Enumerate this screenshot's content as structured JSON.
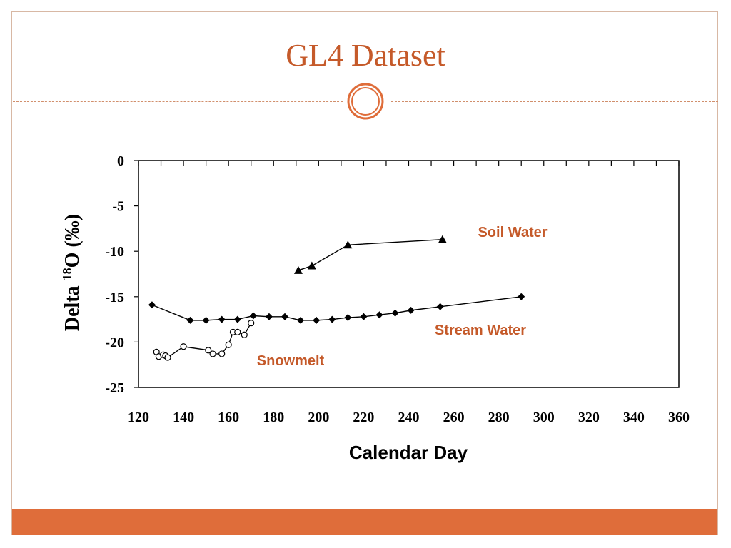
{
  "slide": {
    "title": "GL4 Dataset"
  },
  "colors": {
    "accent": "#c55a2a",
    "bar": "#df6d3a",
    "series_label": "#c55a2a"
  },
  "chart_data": {
    "type": "scatter",
    "title": "",
    "xlabel": "Calendar Day",
    "ylabel_prefix": "Delta ",
    "ylabel_sup": "18",
    "ylabel_suffix": "O (‰)",
    "xlim": [
      120,
      360
    ],
    "ylim": [
      -25,
      0
    ],
    "x_ticks": [
      120,
      140,
      160,
      180,
      200,
      220,
      240,
      260,
      280,
      300,
      320,
      340,
      360
    ],
    "y_ticks": [
      0,
      -5,
      -10,
      -15,
      -20,
      -25
    ],
    "grid": false,
    "series": [
      {
        "name": "Soil Water",
        "marker": "triangle",
        "points": [
          [
            191,
            -12.1
          ],
          [
            197,
            -11.6
          ],
          [
            213,
            -9.3
          ],
          [
            255,
            -8.7
          ]
        ]
      },
      {
        "name": "Stream Water",
        "marker": "diamond",
        "points": [
          [
            126,
            -15.9
          ],
          [
            143,
            -17.6
          ],
          [
            150,
            -17.6
          ],
          [
            157,
            -17.5
          ],
          [
            164,
            -17.5
          ],
          [
            171,
            -17.1
          ],
          [
            178,
            -17.2
          ],
          [
            185,
            -17.2
          ],
          [
            192,
            -17.6
          ],
          [
            199,
            -17.6
          ],
          [
            206,
            -17.5
          ],
          [
            213,
            -17.3
          ],
          [
            220,
            -17.2
          ],
          [
            227,
            -17.0
          ],
          [
            234,
            -16.8
          ],
          [
            241,
            -16.5
          ],
          [
            254,
            -16.1
          ],
          [
            290,
            -15.0
          ]
        ]
      },
      {
        "name": "Snowmelt",
        "marker": "circle-open",
        "points": [
          [
            128,
            -21.1
          ],
          [
            129,
            -21.6
          ],
          [
            131,
            -21.4
          ],
          [
            132,
            -21.5
          ],
          [
            133,
            -21.7
          ],
          [
            140,
            -20.5
          ],
          [
            151,
            -20.9
          ],
          [
            153,
            -21.3
          ],
          [
            157,
            -21.3
          ],
          [
            160,
            -20.3
          ],
          [
            162,
            -18.9
          ],
          [
            164,
            -18.9
          ],
          [
            167,
            -19.2
          ],
          [
            170,
            -17.9
          ]
        ]
      }
    ]
  }
}
